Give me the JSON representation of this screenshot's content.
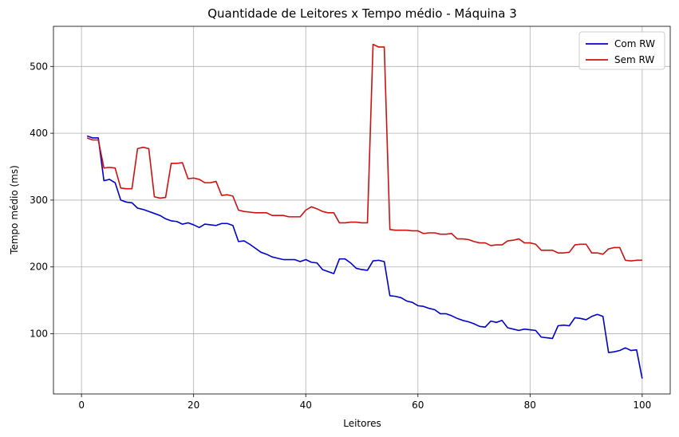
{
  "chart_data": {
    "type": "line",
    "title": "Quantidade de Leitores x Tempo médio - Máquina 3",
    "xlabel": "Leitores",
    "ylabel": "Tempo médio (ms)",
    "xlim": [
      -5,
      105
    ],
    "ylim": [
      10,
      560
    ],
    "xticks": [
      0,
      20,
      40,
      60,
      80,
      100
    ],
    "yticks": [
      100,
      200,
      300,
      400,
      500
    ],
    "grid": true,
    "legend": "top-right",
    "x": [
      1,
      2,
      3,
      4,
      5,
      6,
      7,
      8,
      9,
      10,
      11,
      12,
      13,
      14,
      15,
      16,
      17,
      18,
      19,
      20,
      21,
      22,
      23,
      24,
      25,
      26,
      27,
      28,
      29,
      30,
      31,
      32,
      33,
      34,
      35,
      36,
      37,
      38,
      39,
      40,
      41,
      42,
      43,
      44,
      45,
      46,
      47,
      48,
      49,
      50,
      51,
      52,
      53,
      54,
      55,
      56,
      57,
      58,
      59,
      60,
      61,
      62,
      63,
      64,
      65,
      66,
      67,
      68,
      69,
      70,
      71,
      72,
      73,
      74,
      75,
      76,
      77,
      78,
      79,
      80,
      81,
      82,
      83,
      84,
      85,
      86,
      87,
      88,
      89,
      90,
      91,
      92,
      93,
      94,
      95,
      96,
      97,
      98,
      99,
      100
    ],
    "series": [
      {
        "name": "Com RW",
        "color": "#0000cc",
        "values": [
          396,
          393,
          393,
          329,
          331,
          326,
          300,
          297,
          296,
          288,
          286,
          283,
          280,
          277,
          272,
          269,
          268,
          264,
          266,
          263,
          259,
          264,
          263,
          262,
          265,
          265,
          262,
          238,
          239,
          234,
          228,
          222,
          219,
          215,
          213,
          211,
          211,
          211,
          208,
          211,
          207,
          206,
          196,
          193,
          190,
          212,
          212,
          206,
          198,
          196,
          195,
          209,
          210,
          208,
          157,
          156,
          154,
          149,
          147,
          142,
          141,
          138,
          136,
          130,
          130,
          127,
          123,
          120,
          118,
          115,
          111,
          110,
          119,
          117,
          120,
          109,
          107,
          105,
          107,
          106,
          105,
          95,
          94,
          93,
          112,
          113,
          112,
          124,
          123,
          121,
          126,
          129,
          126,
          72,
          73,
          75,
          79,
          75,
          76,
          33
        ]
      },
      {
        "name": "Sem RW",
        "color": "#cc1111",
        "values": [
          393,
          390,
          390,
          348,
          349,
          348,
          318,
          317,
          317,
          377,
          379,
          377,
          305,
          303,
          304,
          355,
          355,
          356,
          332,
          333,
          331,
          326,
          326,
          328,
          307,
          308,
          306,
          285,
          283,
          282,
          281,
          281,
          281,
          277,
          277,
          277,
          275,
          275,
          275,
          285,
          290,
          287,
          283,
          281,
          281,
          266,
          266,
          267,
          267,
          266,
          266,
          533,
          529,
          529,
          256,
          255,
          255,
          255,
          254,
          254,
          250,
          251,
          251,
          249,
          249,
          250,
          242,
          242,
          241,
          238,
          236,
          236,
          232,
          233,
          233,
          239,
          240,
          242,
          236,
          236,
          234,
          225,
          225,
          225,
          221,
          221,
          222,
          233,
          234,
          234,
          221,
          221,
          219,
          227,
          229,
          229,
          210,
          209,
          210,
          210
        ]
      }
    ]
  }
}
